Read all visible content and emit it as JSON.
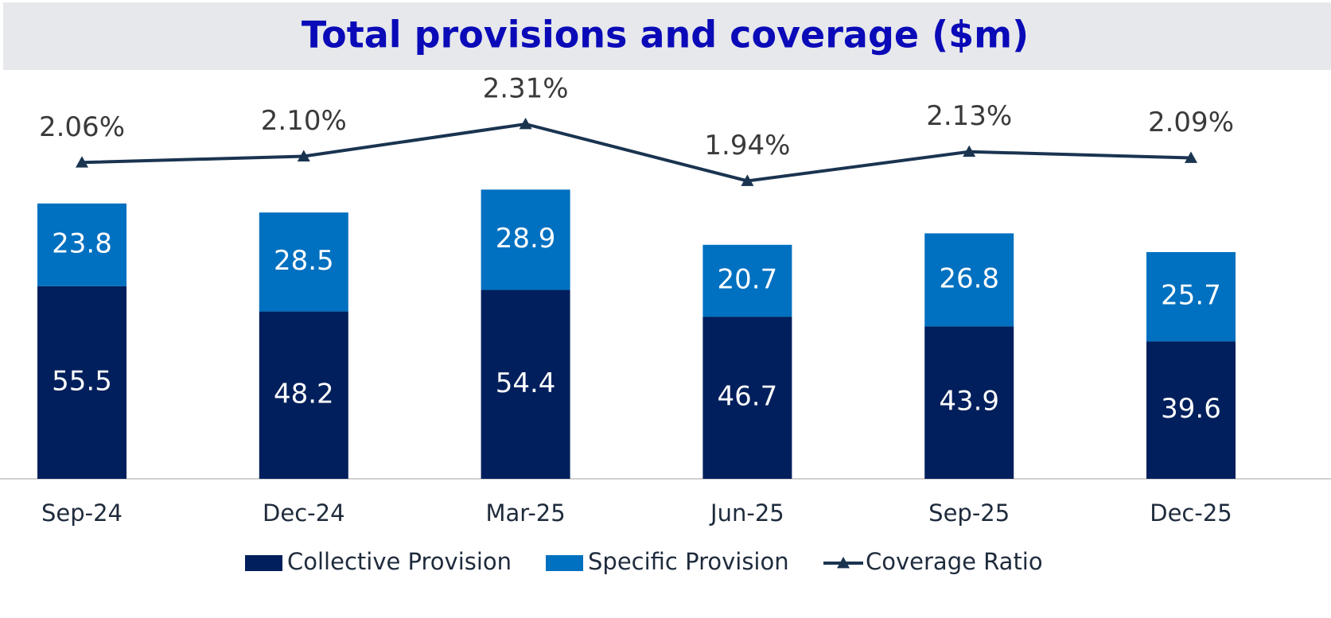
{
  "chart_data": {
    "type": "bar",
    "title": "Total provisions and coverage ($m)",
    "categories": [
      "Sep-24",
      "Dec-24",
      "Mar-25",
      "Jun-25",
      "Sep-25",
      "Dec-25"
    ],
    "stacked": true,
    "ylim": [
      0,
      115
    ],
    "y2lim": [
      0,
      2.6
    ],
    "series": [
      {
        "name": "Collective Provision",
        "color": "#001f5c",
        "values": [
          55.5,
          48.2,
          54.4,
          46.7,
          43.9,
          39.6
        ]
      },
      {
        "name": "Specific Provision",
        "color": "#0070c0",
        "values": [
          23.8,
          28.5,
          28.9,
          20.7,
          26.8,
          25.7
        ]
      },
      {
        "name": "Coverage Ratio",
        "color": "#1a3450",
        "type": "line",
        "axis": "y2",
        "marker": "triangle",
        "values": [
          2.06,
          2.1,
          2.31,
          1.94,
          2.13,
          2.09
        ],
        "value_labels": [
          "2.06%",
          "2.10%",
          "2.31%",
          "1.94%",
          "2.13%",
          "2.09%"
        ]
      }
    ]
  }
}
